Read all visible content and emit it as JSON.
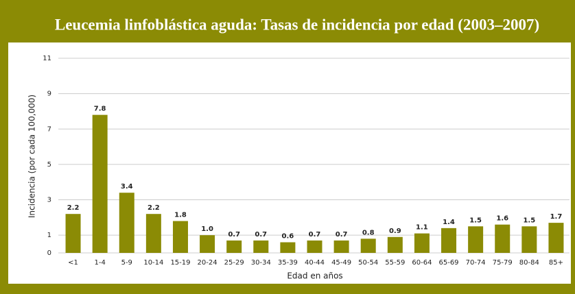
{
  "chart_data": {
    "type": "bar",
    "title": "Leucemia linfoblástica aguda: Tasas de incidencia por edad (2003–2007)",
    "x_label": "Edad en años",
    "y_label": "Incidencia (por cada 100,000)",
    "categories": [
      "<1",
      "1-4",
      "5-9",
      "10-14",
      "15-19",
      "20-24",
      "25-29",
      "30-34",
      "35-39",
      "40-44",
      "45-49",
      "50-54",
      "55-59",
      "60-64",
      "65-69",
      "70-74",
      "75-79",
      "80-84",
      "85+"
    ],
    "values": [
      2.2,
      7.8,
      3.4,
      2.2,
      1.8,
      1.0,
      0.7,
      0.7,
      0.6,
      0.7,
      0.7,
      0.8,
      0.9,
      1.1,
      1.4,
      1.5,
      1.6,
      1.5,
      1.7
    ],
    "value_labels": [
      "2.2",
      "7.8",
      "3.4",
      "2.2",
      "1.8",
      "1.0",
      "0.7",
      "0.7",
      "0.6",
      "0.7",
      "0.7",
      "0.8",
      "0.9",
      "1.1",
      "1.4",
      "1.5",
      "1.6",
      "1.5",
      "1.7"
    ],
    "color": "#8b8b05",
    "ylim": [
      0,
      11
    ],
    "yticks": [
      0,
      1,
      3,
      5,
      7,
      9,
      11
    ],
    "grid": true
  }
}
